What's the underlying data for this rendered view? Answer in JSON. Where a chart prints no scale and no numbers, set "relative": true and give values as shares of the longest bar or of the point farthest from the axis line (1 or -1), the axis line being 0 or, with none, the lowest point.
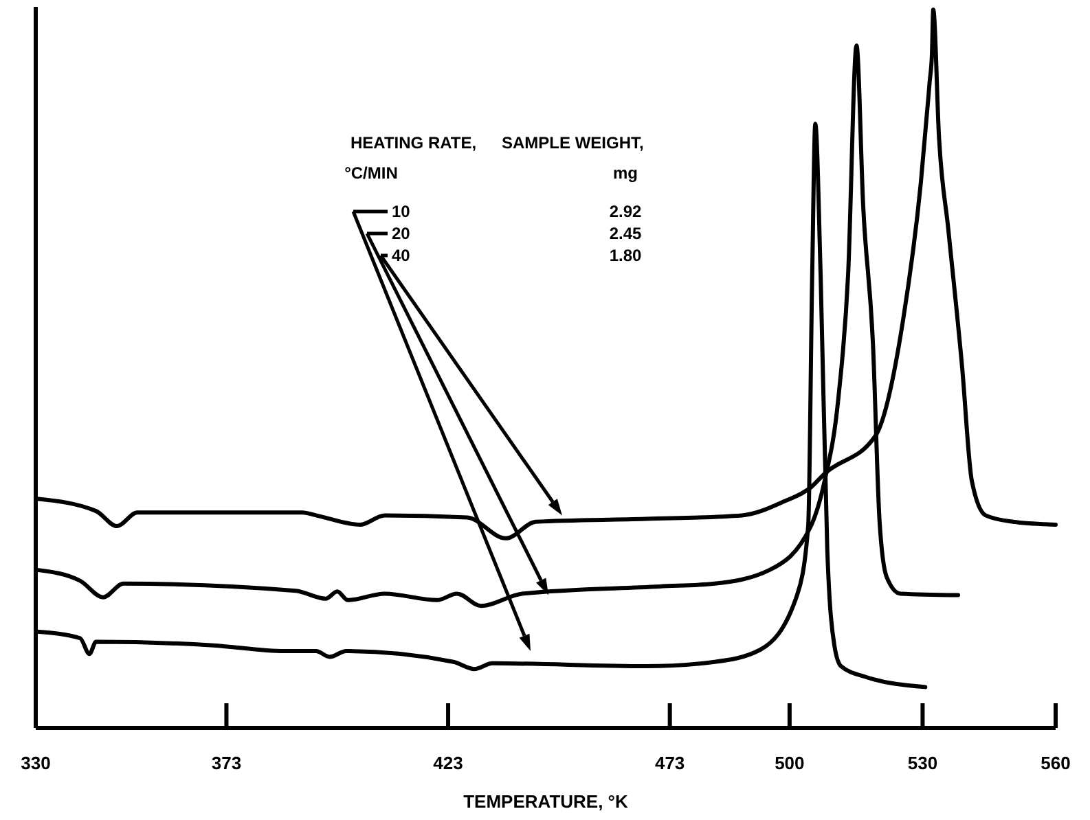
{
  "chart_data": {
    "type": "line",
    "relative": true,
    "xlabel": "TEMPERATURE, °K",
    "xlim": [
      330,
      560
    ],
    "xticks": [
      330,
      373,
      423,
      473,
      500,
      530,
      560
    ],
    "legend": "top",
    "legend_title": "HEATING RATE,\n°C/MIN",
    "annotations": [
      "SAMPLE WEIGHT,\nmg",
      "2.92",
      "2.45",
      "1.80"
    ],
    "series": [
      {
        "name": "10",
        "color": "#000000",
        "x": [
          330.3,
          340,
          342.1,
          343.6,
          370,
          386.1,
          393.2,
          396.3,
          400,
          424.2,
          428.9,
          433,
          467.6,
          483.1,
          493.4,
          501.7,
          504.2,
          505.1,
          505.8,
          507.0,
          508.5,
          510.1,
          511.6,
          517.2,
          530.6
        ],
        "values": [
          0.134,
          0.125,
          0.103,
          0.12,
          0.115,
          0.107,
          0.107,
          0.099,
          0.107,
          0.092,
          0.082,
          0.09,
          0.086,
          0.092,
          0.109,
          0.185,
          0.281,
          0.631,
          0.841,
          0.631,
          0.249,
          0.115,
          0.086,
          0.071,
          0.057
        ]
      },
      {
        "name": "20",
        "color": "#000000",
        "x": [
          330.3,
          340,
          345.2,
          349.8,
          388.6,
          395.4,
          398,
          400.4,
          408.7,
          420.5,
          425,
          430.4,
          439.7,
          470.7,
          483.1,
          495.5,
          504.8,
          507.9,
          511.0,
          513.2,
          515.1,
          516.6,
          518.8,
          520.3,
          521.9,
          525.0,
          538.0
        ],
        "values": [
          0.22,
          0.205,
          0.182,
          0.201,
          0.191,
          0.18,
          0.19,
          0.178,
          0.187,
          0.178,
          0.187,
          0.17,
          0.187,
          0.197,
          0.201,
          0.22,
          0.281,
          0.344,
          0.459,
          0.631,
          0.95,
          0.727,
          0.535,
          0.287,
          0.21,
          0.187,
          0.185
        ]
      },
      {
        "name": "40",
        "color": "#000000",
        "x": [
          330.3,
          343.6,
          348.3,
          352.9,
          390.1,
          393.2,
          403.2,
          408.7,
          427.3,
          436.0,
          442.8,
          467.6,
          489.3,
          498.6,
          504.8,
          507.9,
          519.4,
          525.6,
          529.6,
          531.6,
          532.1,
          532.4,
          533.7,
          535.8,
          538.9,
          541.1,
          544.2,
          550.4,
          560.0
        ],
        "values": [
          0.319,
          0.302,
          0.281,
          0.3,
          0.3,
          0.296,
          0.283,
          0.296,
          0.293,
          0.264,
          0.287,
          0.291,
          0.296,
          0.315,
          0.335,
          0.354,
          0.407,
          0.568,
          0.759,
          0.9,
          0.937,
          1,
          0.822,
          0.694,
          0.503,
          0.344,
          0.296,
          0.287,
          0.283
        ]
      }
    ]
  }
}
